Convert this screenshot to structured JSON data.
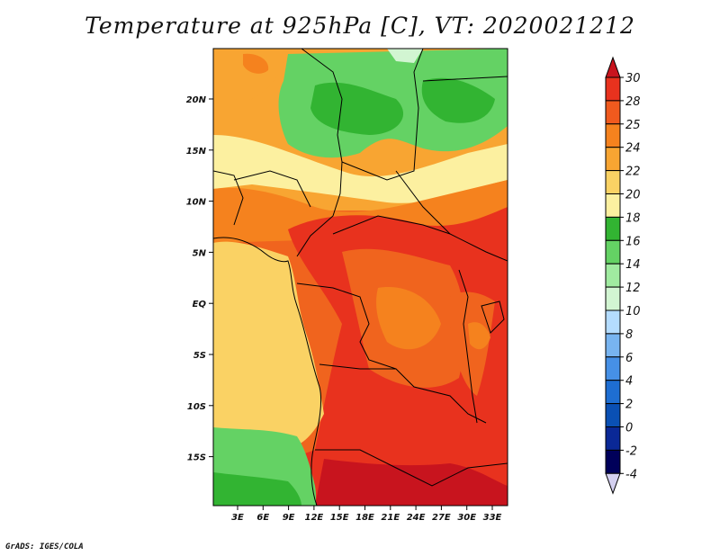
{
  "title": "Temperature at 925hPa [C], VT: 2020021212",
  "footer": "GrADS: IGES/COLA",
  "map": {
    "lat_ticks": [
      "20N",
      "15N",
      "10N",
      "5N",
      "EQ",
      "5S",
      "10S",
      "15S"
    ],
    "lon_ticks": [
      "3E",
      "6E",
      "9E",
      "12E",
      "15E",
      "18E",
      "21E",
      "24E",
      "27E",
      "30E",
      "33E"
    ]
  },
  "colorbar": {
    "labels": [
      "30",
      "28",
      "25",
      "24",
      "22",
      "20",
      "18",
      "16",
      "14",
      "12",
      "10",
      "8",
      "6",
      "4",
      "2",
      "0",
      "-2",
      "-4"
    ],
    "colors": [
      "#c8141e",
      "#e8321e",
      "#f05a1e",
      "#f5821e",
      "#f8a532",
      "#fad264",
      "#fcf0a0",
      "#32b432",
      "#64d264",
      "#a0eba0",
      "#d2f5d2",
      "#b4dcff",
      "#78b4f0",
      "#4690e6",
      "#1e6ed2",
      "#0a50b4",
      "#0a2896",
      "#00005a",
      "#d4d0f0"
    ]
  }
}
